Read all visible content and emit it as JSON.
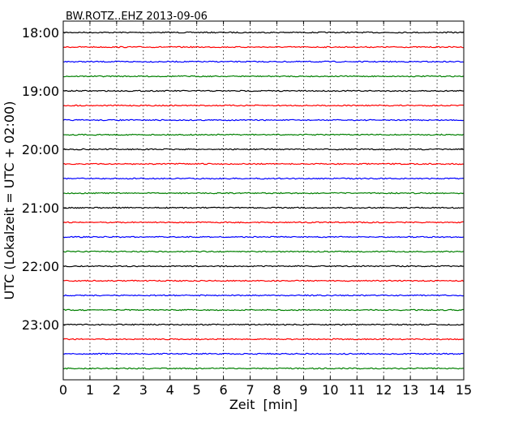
{
  "chart_data": {
    "type": "line",
    "title": "BW.ROTZ..EHZ 2013-09-06",
    "xlabel": "Zeit  [min]",
    "ylabel": "UTC (Lokalzeit = UTC + 02:00)",
    "xlim": [
      0,
      15
    ],
    "x_ticks": [
      "0",
      "1",
      "2",
      "3",
      "4",
      "5",
      "6",
      "7",
      "8",
      "9",
      "10",
      "11",
      "12",
      "13",
      "14",
      "15"
    ],
    "y_tick_labels": [
      "18:00",
      "19:00",
      "20:00",
      "21:00",
      "22:00",
      "23:00"
    ],
    "grid": "vertical dotted",
    "interval_minutes": 15,
    "trace_colors": [
      "#000000",
      "#ff0000",
      "#0000ff",
      "#008000"
    ],
    "series": [
      {
        "name": "18:00"
      },
      {
        "name": "18:15"
      },
      {
        "name": "18:30"
      },
      {
        "name": "18:45"
      },
      {
        "name": "19:00"
      },
      {
        "name": "19:15"
      },
      {
        "name": "19:30"
      },
      {
        "name": "19:45"
      },
      {
        "name": "20:00"
      },
      {
        "name": "20:15"
      },
      {
        "name": "20:30"
      },
      {
        "name": "20:45"
      },
      {
        "name": "21:00"
      },
      {
        "name": "21:15"
      },
      {
        "name": "21:30"
      },
      {
        "name": "21:45"
      },
      {
        "name": "22:00"
      },
      {
        "name": "22:15"
      },
      {
        "name": "22:30"
      },
      {
        "name": "22:45"
      },
      {
        "name": "23:00"
      },
      {
        "name": "23:15"
      },
      {
        "name": "23:30"
      },
      {
        "name": "23:45"
      }
    ]
  }
}
